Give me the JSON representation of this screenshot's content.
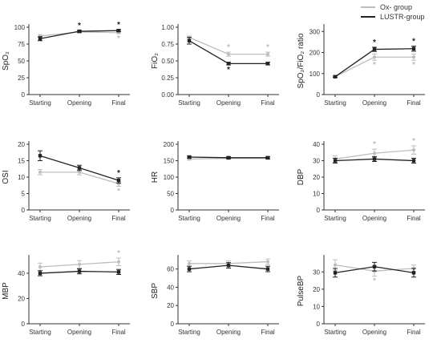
{
  "legend": {
    "position": "top-right",
    "entries": [
      {
        "name": "Ox- group",
        "color": "#bdbdbd"
      },
      {
        "name": "LUSTR-group",
        "color": "#222222"
      }
    ]
  },
  "colors": {
    "ox": "#bdbdbd",
    "lustr": "#222222"
  },
  "chart_data": [
    {
      "type": "line",
      "ylabel": "SpO₂",
      "ylim": [
        0,
        100
      ],
      "yticks": [
        0,
        25,
        50,
        75,
        100
      ],
      "categories": [
        "Starting",
        "Opening",
        "Final"
      ],
      "series": [
        {
          "name": "Ox- group",
          "values": [
            87,
            93,
            92
          ],
          "err": [
            2,
            1.5,
            1.5
          ],
          "sig": [
            "",
            "",
            "*"
          ]
        },
        {
          "name": "LUSTR-group",
          "values": [
            83,
            94,
            95
          ],
          "err": [
            3,
            1.5,
            1.5
          ],
          "sig": [
            "",
            "*",
            "*"
          ]
        }
      ]
    },
    {
      "type": "line",
      "ylabel": "FiO₂",
      "ylim": [
        0,
        1
      ],
      "yticks": [
        0.0,
        0.25,
        0.5,
        0.75,
        1.0
      ],
      "ytick_labels": [
        "0.00",
        "0.25",
        "0.50",
        "0.75",
        "1.00"
      ],
      "categories": [
        "Starting",
        "Opening",
        "Final"
      ],
      "series": [
        {
          "name": "Ox- group",
          "values": [
            0.85,
            0.6,
            0.6
          ],
          "err": [
            0.02,
            0.03,
            0.03
          ],
          "sig": [
            "",
            "*",
            "*"
          ]
        },
        {
          "name": "LUSTR-group",
          "values": [
            0.8,
            0.46,
            0.46
          ],
          "err": [
            0.05,
            0.02,
            0.02
          ],
          "sig": [
            "",
            "*",
            ""
          ]
        }
      ]
    },
    {
      "type": "line",
      "ylabel": "SpO₂/FiO₂ ratio",
      "ylim": [
        0,
        320
      ],
      "yticks": [
        0,
        100,
        200,
        300
      ],
      "categories": [
        "Starting",
        "Opening",
        "Final"
      ],
      "series": [
        {
          "name": "Ox- group",
          "values": [
            85,
            178,
            178
          ],
          "err": [
            5,
            15,
            15
          ],
          "sig": [
            "",
            "*",
            "*"
          ]
        },
        {
          "name": "LUSTR-group",
          "values": [
            85,
            215,
            218
          ],
          "err": [
            3,
            10,
            12
          ],
          "sig": [
            "",
            "*",
            "*"
          ]
        }
      ]
    },
    {
      "type": "line",
      "ylabel": "OSI",
      "ylim": [
        0,
        20
      ],
      "yticks": [
        0,
        5,
        10,
        15,
        20
      ],
      "categories": [
        "Starting",
        "Opening",
        "Final"
      ],
      "series": [
        {
          "name": "Ox- group",
          "values": [
            11.5,
            11.5,
            8
          ],
          "err": [
            0.8,
            0.8,
            0.8
          ],
          "sig": [
            "",
            "",
            "*"
          ]
        },
        {
          "name": "LUSTR-group",
          "values": [
            16.5,
            12.8,
            9
          ],
          "err": [
            1.5,
            0.8,
            0.8
          ],
          "sig": [
            "",
            "",
            "*"
          ]
        }
      ]
    },
    {
      "type": "line",
      "ylabel": "HR",
      "ylim": [
        0,
        200
      ],
      "yticks": [
        0,
        50,
        100,
        150,
        200
      ],
      "categories": [
        "Starting",
        "Opening",
        "Final"
      ],
      "series": [
        {
          "name": "Ox- group",
          "values": [
            155,
            157,
            157
          ],
          "err": [
            3,
            3,
            3
          ],
          "sig": [
            "",
            "",
            ""
          ]
        },
        {
          "name": "LUSTR-group",
          "values": [
            161,
            159,
            159
          ],
          "err": [
            3,
            3,
            3
          ],
          "sig": [
            "",
            "",
            ""
          ]
        }
      ]
    },
    {
      "type": "line",
      "ylabel": "DBP",
      "ylim": [
        0,
        40
      ],
      "yticks": [
        0,
        10,
        20,
        30,
        40
      ],
      "categories": [
        "Starting",
        "Opening",
        "Final"
      ],
      "series": [
        {
          "name": "Ox- group",
          "values": [
            31,
            34.5,
            36.5
          ],
          "err": [
            2,
            2.5,
            2.5
          ],
          "sig": [
            "",
            "*",
            "*"
          ]
        },
        {
          "name": "LUSTR-group",
          "values": [
            30,
            31,
            30
          ],
          "err": [
            1.5,
            1.5,
            1.5
          ],
          "sig": [
            "",
            "",
            ""
          ]
        }
      ]
    },
    {
      "type": "line",
      "ylabel": "MBP",
      "ylim": [
        0,
        52
      ],
      "yticks": [
        0,
        20,
        40
      ],
      "categories": [
        "Starting",
        "Opening",
        "Final"
      ],
      "series": [
        {
          "name": "Ox- group",
          "values": [
            45,
            47,
            49
          ],
          "err": [
            3,
            3,
            3
          ],
          "sig": [
            "",
            "",
            "*"
          ]
        },
        {
          "name": "LUSTR-group",
          "values": [
            40,
            41.5,
            41
          ],
          "err": [
            2,
            2,
            2
          ],
          "sig": [
            "",
            "",
            ""
          ]
        }
      ]
    },
    {
      "type": "line",
      "ylabel": "SBP",
      "ylim": [
        0,
        72
      ],
      "yticks": [
        0,
        20,
        40,
        60
      ],
      "categories": [
        "Starting",
        "Opening",
        "Final"
      ],
      "series": [
        {
          "name": "Ox- group",
          "values": [
            66,
            66,
            68
          ],
          "err": [
            3,
            3,
            3
          ],
          "sig": [
            "",
            "",
            ""
          ]
        },
        {
          "name": "LUSTR-group",
          "values": [
            60,
            64,
            60
          ],
          "err": [
            3,
            3,
            3
          ],
          "sig": [
            "",
            "",
            ""
          ]
        }
      ]
    },
    {
      "type": "line",
      "ylabel": "PulseBP",
      "ylim": [
        0,
        38
      ],
      "yticks": [
        0,
        10,
        20,
        30
      ],
      "categories": [
        "Starting",
        "Opening",
        "Final"
      ],
      "series": [
        {
          "name": "Ox- group",
          "values": [
            34,
            30.5,
            32
          ],
          "err": [
            3,
            3,
            2
          ],
          "sig": [
            "",
            "*",
            ""
          ]
        },
        {
          "name": "LUSTR-group",
          "values": [
            29.5,
            33,
            29.5
          ],
          "err": [
            2.5,
            2.5,
            2.5
          ],
          "sig": [
            "",
            "",
            ""
          ]
        }
      ]
    }
  ]
}
